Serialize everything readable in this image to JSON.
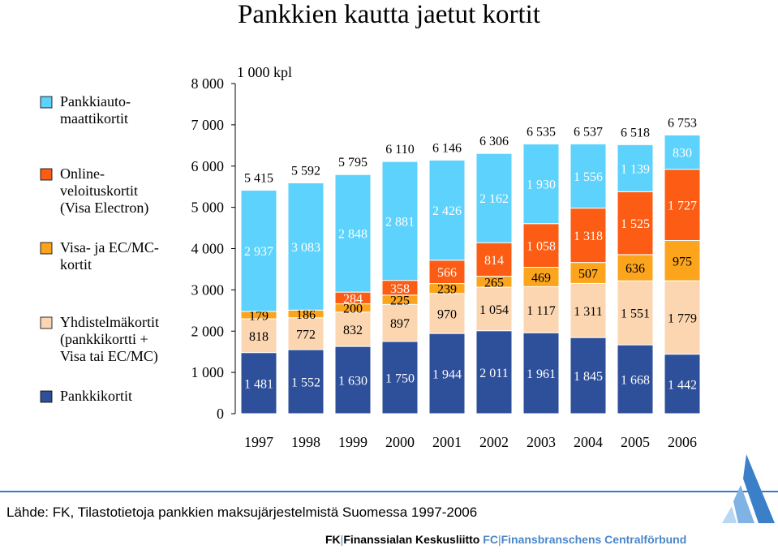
{
  "title": "Pankkien kautta jaetut kortit",
  "source": "Lähde: FK, Tilastotietoja pankkien maksujärjestelmistä Suomessa 1997-2006",
  "logo": {
    "fk": "FK",
    "fi": "Finanssialan Keskusliitto",
    "fc": "FC",
    "sv": "Finansbranschens Centralförbund"
  },
  "chart_data": {
    "type": "bar",
    "stacked": true,
    "unit_label": "1 000 kpl",
    "categories": [
      "1997",
      "1998",
      "1999",
      "2000",
      "2001",
      "2002",
      "2003",
      "2004",
      "2005",
      "2006"
    ],
    "ylim": [
      0,
      8000
    ],
    "yticks": [
      "0",
      "1 000",
      "2 000",
      "3 000",
      "4 000",
      "5 000",
      "6 000",
      "7 000",
      "8 000"
    ],
    "series": [
      {
        "name": "Pankkikortit",
        "color": "#2e4f9a",
        "values": [
          1481,
          1552,
          1630,
          1750,
          1944,
          2011,
          1961,
          1845,
          1668,
          1442
        ],
        "labels": [
          "1 481",
          "1 552",
          "1 630",
          "1 750",
          "1 944",
          "2 011",
          "1 961",
          "1 845",
          "1 668",
          "1 442"
        ]
      },
      {
        "name": "Yhdistelmäkortit (pankkikortti + Visa tai EC/MC)",
        "color": "#fcd6b0",
        "values": [
          818,
          772,
          832,
          897,
          970,
          1054,
          1117,
          1311,
          1551,
          1779
        ],
        "labels": [
          "818",
          "772",
          "832",
          "897",
          "970",
          "1 054",
          "1 117",
          "1 311",
          "1 551",
          "1 779"
        ]
      },
      {
        "name": "Visa- ja EC/MC-kortit",
        "color": "#fca41c",
        "values": [
          179,
          186,
          200,
          225,
          239,
          265,
          469,
          507,
          636,
          975
        ],
        "labels": [
          "179",
          "186",
          "200",
          "225",
          "239",
          "265",
          "469",
          "507",
          "636",
          "975"
        ]
      },
      {
        "name": "Online-veloituskortit (Visa Electron)",
        "color": "#fc5c14",
        "values": [
          0,
          0,
          284,
          358,
          566,
          814,
          1058,
          1318,
          1525,
          1727
        ],
        "labels": [
          "",
          "",
          "284",
          "358",
          "566",
          "814",
          "1 058",
          "1 318",
          "1 525",
          "1 727"
        ]
      },
      {
        "name": "Pankkiautomaattikortit",
        "color": "#5cd2fc",
        "values": [
          2937,
          3083,
          2848,
          2881,
          2426,
          2162,
          1930,
          1556,
          1139,
          830
        ],
        "labels": [
          "2 937",
          "3 083",
          "2 848",
          "2 881",
          "2 426",
          "2 162",
          "1 930",
          "1 556",
          "1 139",
          "830"
        ]
      }
    ],
    "totals": [
      "5 415",
      "5 592",
      "5 795",
      "6 110",
      "6 146",
      "6 306",
      "6 535",
      "6 537",
      "6 518",
      "6 753"
    ],
    "legend": [
      {
        "label": "Pankkiauto- maattikortit",
        "color": "#5cd2fc"
      },
      {
        "label": "Online- veloituskortit (Visa Electron)",
        "color": "#fc5c14"
      },
      {
        "label": "Visa- ja EC/MC- kortit",
        "color": "#fca41c"
      },
      {
        "label": "Yhdistelmäkortit (pankkikortti + Visa tai EC/MC)",
        "color": "#fcd6b0"
      },
      {
        "label": "Pankkikortit",
        "color": "#2e4f9a"
      }
    ],
    "legend_position": "left",
    "grid": false
  }
}
